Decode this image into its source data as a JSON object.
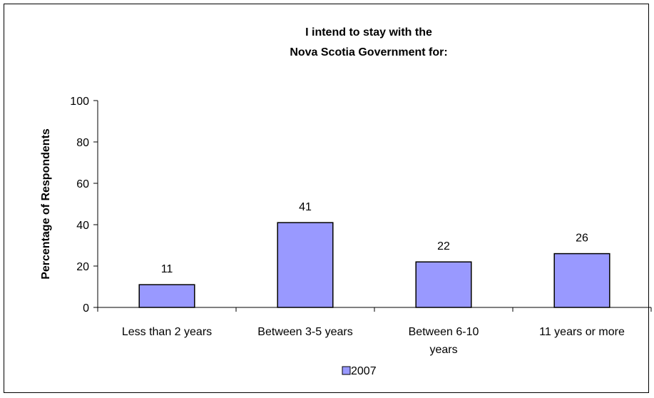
{
  "chart_data": {
    "type": "bar",
    "title_lines": [
      "I intend to stay with the",
      "Nova Scotia Government for:"
    ],
    "ylabel": "Percentage of Respondents",
    "xlabel": "",
    "ylim": [
      0,
      100
    ],
    "yticks": [
      0,
      20,
      40,
      60,
      80,
      100
    ],
    "categories": [
      [
        "Less than 2 years"
      ],
      [
        "Between 3-5 years"
      ],
      [
        "Between 6-10",
        "years"
      ],
      [
        "11 years or more"
      ]
    ],
    "series": [
      {
        "name": "2007",
        "values": [
          11,
          41,
          22,
          26
        ],
        "color": "#9999ff"
      }
    ],
    "legend_position": "bottom",
    "grid": false
  }
}
